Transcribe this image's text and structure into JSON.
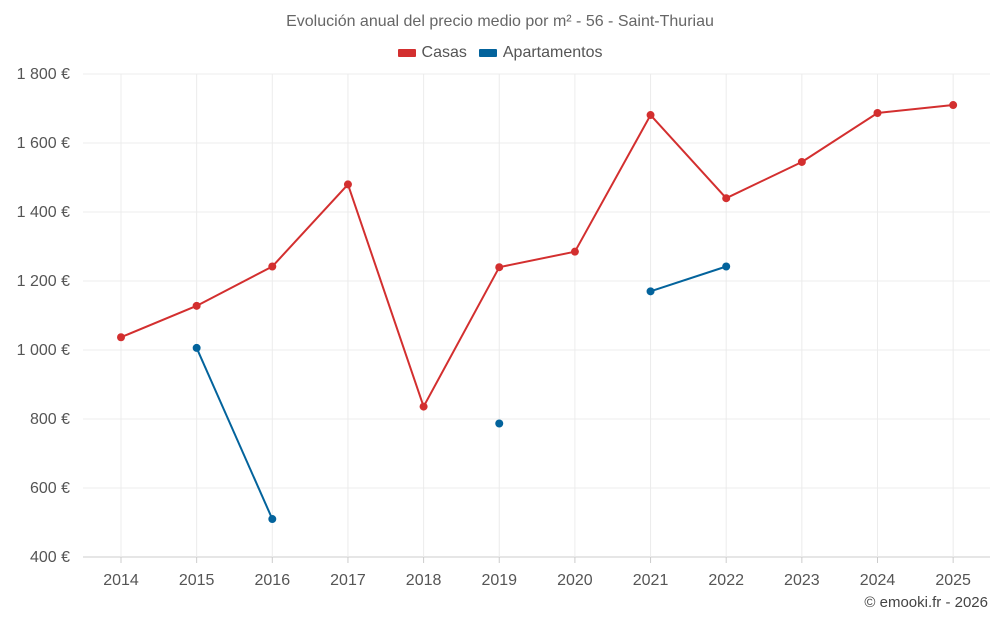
{
  "chart_data": {
    "type": "line",
    "title": "Evolución anual del precio medio por m² - 56 - Saint-Thuriau",
    "categories": [
      "2014",
      "2015",
      "2016",
      "2017",
      "2018",
      "2019",
      "2020",
      "2021",
      "2022",
      "2023",
      "2024",
      "2025"
    ],
    "series": [
      {
        "name": "Casas",
        "color": "#d32f2f",
        "values": [
          1037,
          1128,
          1242,
          1480,
          836,
          1240,
          1285,
          1681,
          1440,
          1545,
          1687,
          1710
        ]
      },
      {
        "name": "Apartamentos",
        "color": "#03639c",
        "values": [
          null,
          1006,
          510,
          null,
          null,
          787,
          null,
          1170,
          1242,
          null,
          null,
          null
        ]
      }
    ],
    "ylim": [
      400,
      1800
    ],
    "yticks": [
      400,
      600,
      800,
      1000,
      1200,
      1400,
      1600,
      1800
    ],
    "ytick_labels": [
      "400 €",
      "600 €",
      "800 €",
      "1 000 €",
      "1 200 €",
      "1 400 €",
      "1 600 €",
      "1 800 €"
    ],
    "xlabel": "",
    "ylabel": "",
    "grid": true,
    "legend_position": "top-center"
  },
  "credit": "© emooki.fr - 2026"
}
